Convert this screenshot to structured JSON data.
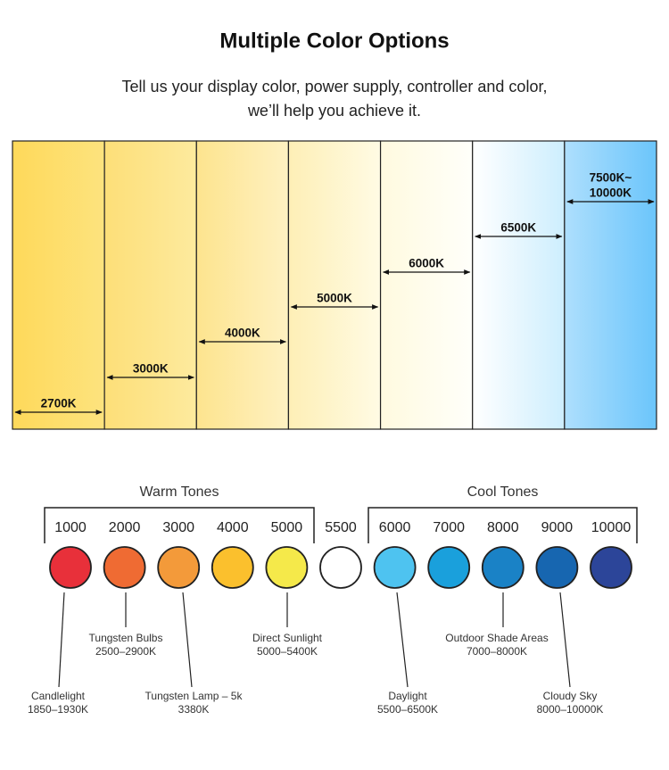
{
  "header": {
    "title": "Multiple Color Options",
    "subtitle": [
      "Tell us your display color, power supply, controller and color,",
      "we’ll help you achieve it."
    ]
  },
  "panels": [
    {
      "label": [
        "2700K"
      ]
    },
    {
      "label": [
        "3000K"
      ]
    },
    {
      "label": [
        "4000K"
      ]
    },
    {
      "label": [
        "5000K"
      ]
    },
    {
      "label": [
        "6000K"
      ]
    },
    {
      "label": [
        "6500K"
      ]
    },
    {
      "label": [
        "7500K~",
        "10000K"
      ]
    }
  ],
  "groups": [
    {
      "label": "Warm Tones"
    },
    {
      "label": "Cool Tones"
    }
  ],
  "circles": [
    "1000",
    "2000",
    "3000",
    "4000",
    "5000",
    "5500",
    "6000",
    "7000",
    "8000",
    "9000",
    "10000"
  ],
  "annotations": [
    {
      "name": "Candlelight",
      "range": "1850–1930K"
    },
    {
      "name": "Tungsten Bulbs",
      "range": "2500–2900K"
    },
    {
      "name": "Tungsten Lamp – 5k",
      "range": "3380K"
    },
    {
      "name": "Direct Sunlight",
      "range": "5000–5400K"
    },
    {
      "name": "Daylight",
      "range": "5500–6500K"
    },
    {
      "name": "Outdoor Shade Areas",
      "range": "7000–8000K"
    },
    {
      "name": "Cloudy Sky",
      "range": "8000–10000K"
    }
  ]
}
